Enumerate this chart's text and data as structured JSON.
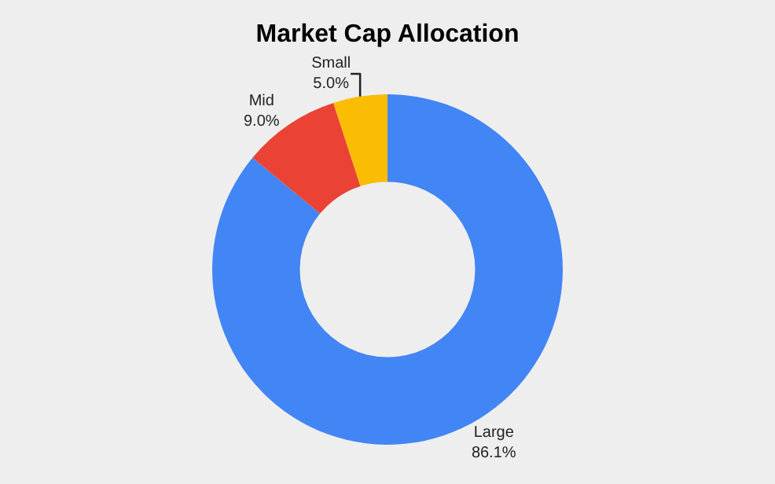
{
  "chart_data": {
    "type": "donut",
    "title": "Market Cap Allocation",
    "categories": [
      "Large",
      "Mid",
      "Small"
    ],
    "values": [
      86.1,
      9.0,
      5.0
    ],
    "value_labels": [
      "86.1%",
      "9.0%",
      "5.0%"
    ],
    "colors": [
      "#4285f4",
      "#ea4335",
      "#fbbc04"
    ],
    "legend": false
  }
}
